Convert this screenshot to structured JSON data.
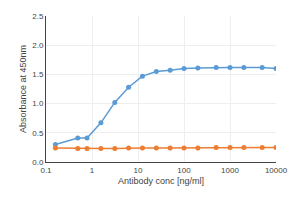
{
  "chart_data": {
    "type": "line",
    "xlabel": "Antibody conc [ng/ml]",
    "ylabel": "Absorbance at 450nm",
    "x": [
      0.16,
      0.49,
      0.78,
      1.56,
      3.13,
      6.25,
      12.5,
      25,
      50,
      100,
      200,
      500,
      1000,
      2000,
      5000,
      10000
    ],
    "series": [
      {
        "color": "#5B9BD5",
        "values": [
          0.3,
          0.41,
          0.41,
          0.67,
          1.02,
          1.28,
          1.47,
          1.55,
          1.57,
          1.6,
          1.61,
          1.62,
          1.62,
          1.62,
          1.62,
          1.6
        ]
      },
      {
        "color": "#ED7D31",
        "values": [
          0.24,
          0.23,
          0.23,
          0.23,
          0.23,
          0.24,
          0.24,
          0.24,
          0.24,
          0.24,
          0.24,
          0.25,
          0.25,
          0.25,
          0.25,
          0.25
        ]
      }
    ],
    "xlim": [
      0.1,
      10000
    ],
    "xticks": [
      0.1,
      1,
      10,
      100,
      1000,
      10000
    ],
    "ylim": [
      0,
      2.5
    ],
    "yticks": [
      {
        "value": 0,
        "label": "0.0"
      },
      0.5,
      {
        "value": 1.0,
        "label": "1.0"
      },
      1.5,
      {
        "value": 2.0,
        "label": "2.0"
      },
      2.5
    ],
    "log": "x",
    "grid": true,
    "marker": "circle"
  }
}
